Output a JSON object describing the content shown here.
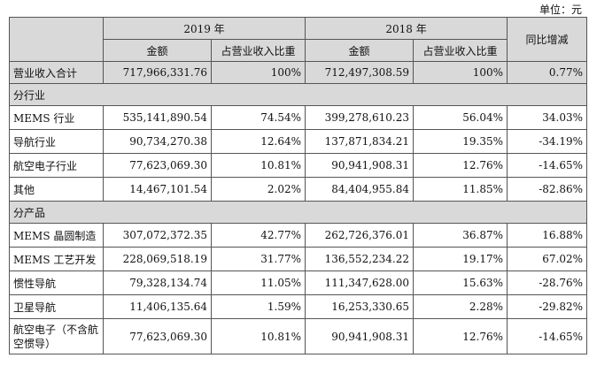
{
  "unit": "单位：元",
  "header": {
    "year_2019": "2019 年",
    "year_2018": "2018 年",
    "yoy": "同比增减",
    "amount": "金额",
    "ratio": "占营业收入比重"
  },
  "total": {
    "label": "营业收入合计",
    "amt2019": "717,966,331.76",
    "pct2019": "100%",
    "amt2018": "712,497,308.59",
    "pct2018": "100%",
    "yoy": "0.77%"
  },
  "sections": [
    {
      "title": "分行业",
      "rows": [
        {
          "label": "MEMS 行业",
          "amt2019": "535,141,890.54",
          "pct2019": "74.54%",
          "amt2018": "399,278,610.23",
          "pct2018": "56.04%",
          "yoy": "34.03%"
        },
        {
          "label": "导航行业",
          "amt2019": "90,734,270.38",
          "pct2019": "12.64%",
          "amt2018": "137,871,834.21",
          "pct2018": "19.35%",
          "yoy": "-34.19%"
        },
        {
          "label": "航空电子行业",
          "amt2019": "77,623,069.30",
          "pct2019": "10.81%",
          "amt2018": "90,941,908.31",
          "pct2018": "12.76%",
          "yoy": "-14.65%"
        },
        {
          "label": "其他",
          "amt2019": "14,467,101.54",
          "pct2019": "2.02%",
          "amt2018": "84,404,955.84",
          "pct2018": "11.85%",
          "yoy": "-82.86%"
        }
      ]
    },
    {
      "title": "分产品",
      "rows": [
        {
          "label": "MEMS 晶圆制造",
          "amt2019": "307,072,372.35",
          "pct2019": "42.77%",
          "amt2018": "262,726,376.01",
          "pct2018": "36.87%",
          "yoy": "16.88%"
        },
        {
          "label": "MEMS 工艺开发",
          "amt2019": "228,069,518.19",
          "pct2019": "31.77%",
          "amt2018": "136,552,234.22",
          "pct2018": "19.17%",
          "yoy": "67.02%"
        },
        {
          "label": "惯性导航",
          "amt2019": "79,328,134.74",
          "pct2019": "11.05%",
          "amt2018": "111,347,628.00",
          "pct2018": "15.63%",
          "yoy": "-28.76%"
        },
        {
          "label": "卫星导航",
          "amt2019": "11,406,135.64",
          "pct2019": "1.59%",
          "amt2018": "16,253,330.65",
          "pct2018": "2.28%",
          "yoy": "-29.82%"
        },
        {
          "label": "航空电子（不含航空惯导）",
          "amt2019": "77,623,069.30",
          "pct2019": "10.81%",
          "amt2018": "90,941,908.31",
          "pct2018": "12.76%",
          "yoy": "-14.65%"
        }
      ]
    }
  ]
}
